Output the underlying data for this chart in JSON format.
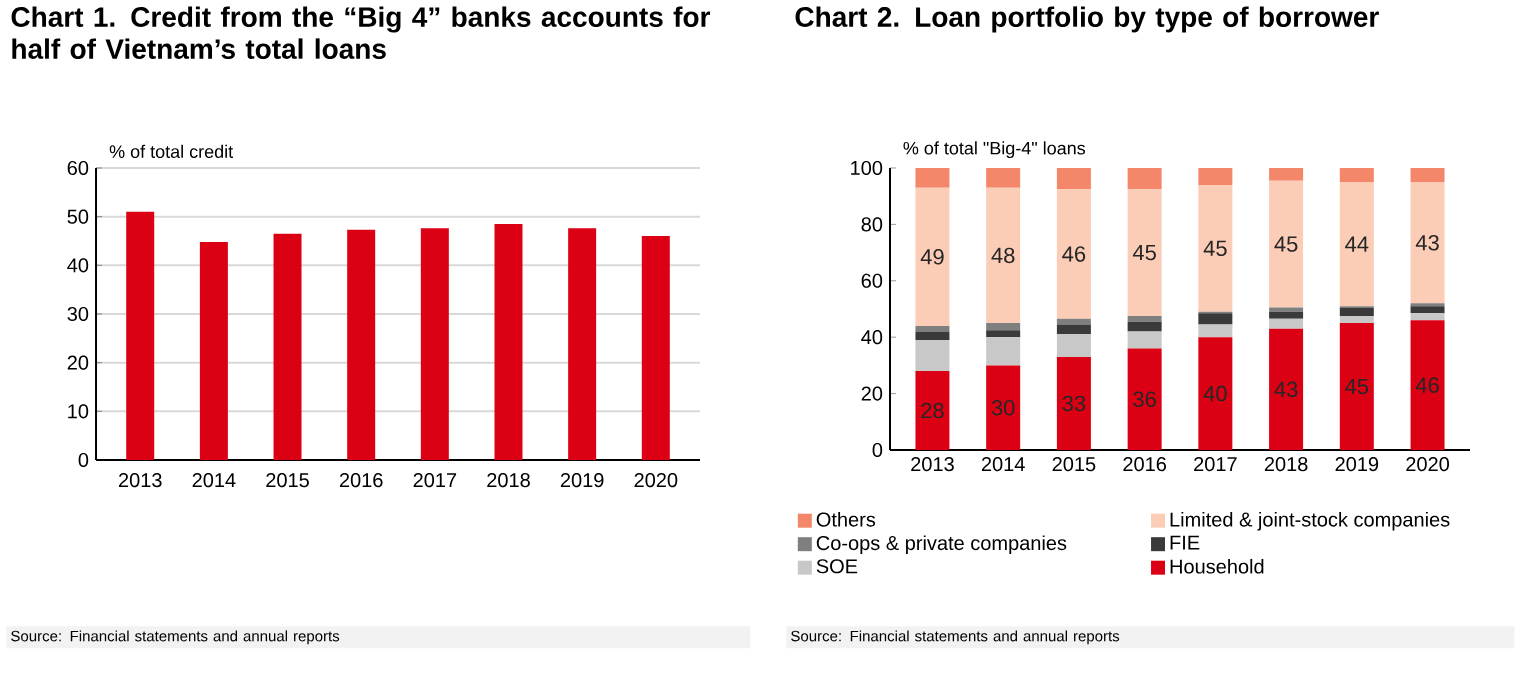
{
  "chart_data": [
    {
      "type": "bar",
      "title": "Chart 1. Credit from the “Big 4” banks accounts for half of Vietnam’s total loans",
      "ylabel": "% of total credit",
      "categories": [
        "2013",
        "2014",
        "2015",
        "2016",
        "2017",
        "2018",
        "2019",
        "2020"
      ],
      "values": [
        51,
        44.8,
        46.5,
        47.3,
        47.6,
        48.5,
        47.6,
        46
      ],
      "color": "#dc0014",
      "ylim": [
        0,
        60
      ],
      "yticks": [
        0,
        10,
        20,
        30,
        40,
        50,
        60
      ],
      "grid": "y",
      "annotations": [
        "Source: Financial statements and annual reports"
      ]
    },
    {
      "type": "bar",
      "title": "Chart 2. Loan portfolio by type of borrower",
      "ylabel": "% of total \"Big-4\" loans",
      "stacked": true,
      "categories": [
        "2013",
        "2014",
        "2015",
        "2016",
        "2017",
        "2018",
        "2019",
        "2020"
      ],
      "series": [
        {
          "name": "Household",
          "color": "#dc0014",
          "values": [
            28,
            30,
            33,
            36,
            40,
            43,
            45,
            46
          ],
          "value_labels": [
            "28",
            "30",
            "33",
            "36",
            "40",
            "43",
            "45",
            "46"
          ]
        },
        {
          "name": "SOE",
          "color": "#c8c8c8",
          "values": [
            11,
            10,
            8,
            6,
            4.5,
            3.5,
            2.5,
            2.5
          ]
        },
        {
          "name": "FIE",
          "color": "#3a3a3a",
          "values": [
            3,
            2.5,
            3.5,
            3.5,
            4,
            2.5,
            3,
            2.5
          ]
        },
        {
          "name": "Co-ops & private companies",
          "color": "#7f7f7f",
          "values": [
            2,
            2.5,
            2,
            2,
            0.5,
            1.5,
            0.5,
            1
          ]
        },
        {
          "name": "Limited & joint-stock companies",
          "color": "#fbcdb6",
          "values": [
            49,
            48,
            46,
            45,
            45,
            45,
            44,
            43
          ],
          "value_labels": [
            "49",
            "48",
            "46",
            "45",
            "45",
            "45",
            "44",
            "43"
          ]
        },
        {
          "name": "Others",
          "color": "#f4876a",
          "values": [
            7,
            7,
            7.5,
            7.5,
            6,
            4.5,
            5,
            5
          ]
        }
      ],
      "ylim": [
        0,
        100
      ],
      "yticks": [
        0,
        20,
        40,
        60,
        80,
        100
      ],
      "grid": false,
      "legend": "bottom",
      "annotations": [
        "Source: Financial statements and annual reports"
      ]
    }
  ]
}
